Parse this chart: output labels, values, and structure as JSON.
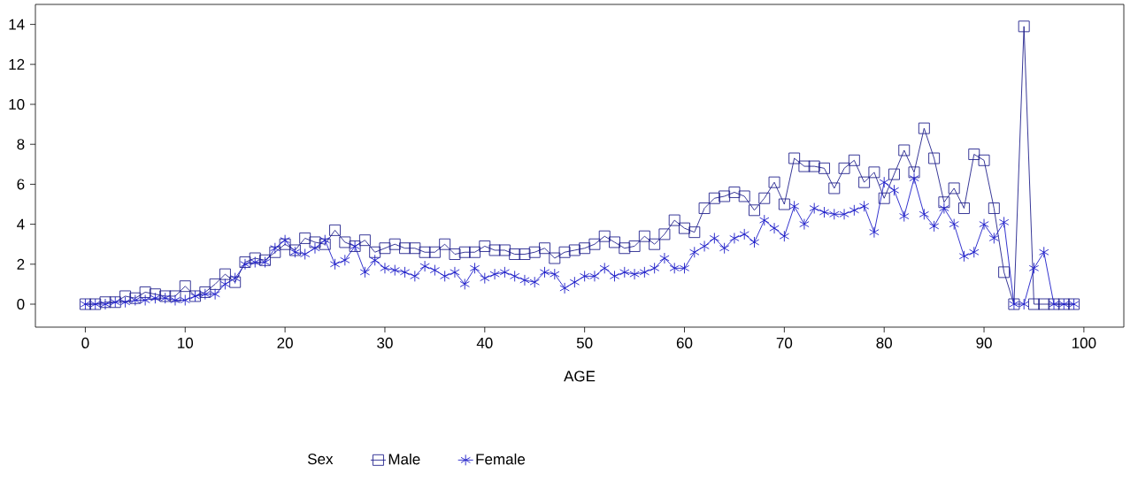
{
  "chart_data": {
    "type": "line",
    "xlabel": "AGE",
    "legend_title": "Sex",
    "legend": "bottom",
    "grid": false,
    "xlim": [
      -5,
      104
    ],
    "ylim": [
      -1.15,
      15
    ],
    "xticks": [
      0,
      10,
      20,
      30,
      40,
      50,
      60,
      70,
      80,
      90,
      100
    ],
    "yticks": [
      0,
      2,
      4,
      6,
      8,
      10,
      12,
      14
    ],
    "x": [
      0,
      1,
      2,
      3,
      4,
      5,
      6,
      7,
      8,
      9,
      10,
      11,
      12,
      13,
      14,
      15,
      16,
      17,
      18,
      19,
      20,
      21,
      22,
      23,
      24,
      25,
      26,
      27,
      28,
      29,
      30,
      31,
      32,
      33,
      34,
      35,
      36,
      37,
      38,
      39,
      40,
      41,
      42,
      43,
      44,
      45,
      46,
      47,
      48,
      49,
      50,
      51,
      52,
      53,
      54,
      55,
      56,
      57,
      58,
      59,
      60,
      61,
      62,
      63,
      64,
      65,
      66,
      67,
      68,
      69,
      70,
      71,
      72,
      73,
      74,
      75,
      76,
      77,
      78,
      79,
      80,
      81,
      82,
      83,
      84,
      85,
      86,
      87,
      88,
      89,
      90,
      91,
      92,
      93,
      94,
      95,
      96,
      97,
      98,
      99
    ],
    "series": [
      {
        "name": "Male",
        "color": "#22228c",
        "marker": "square",
        "values": [
          0,
          0,
          0.1,
          0.1,
          0.4,
          0.3,
          0.6,
          0.5,
          0.4,
          0.4,
          0.9,
          0.4,
          0.6,
          1.0,
          1.5,
          1.1,
          2.1,
          2.3,
          2.2,
          2.6,
          3.0,
          2.7,
          3.3,
          3.1,
          3.0,
          3.7,
          3.1,
          2.9,
          3.2,
          2.6,
          2.8,
          3.0,
          2.8,
          2.8,
          2.6,
          2.6,
          3.0,
          2.5,
          2.6,
          2.6,
          2.9,
          2.7,
          2.7,
          2.5,
          2.5,
          2.6,
          2.8,
          2.3,
          2.6,
          2.7,
          2.8,
          3.0,
          3.4,
          3.1,
          2.8,
          2.9,
          3.4,
          3.0,
          3.5,
          4.2,
          3.8,
          3.6,
          4.8,
          5.3,
          5.4,
          5.6,
          5.4,
          4.7,
          5.3,
          6.1,
          5.0,
          7.3,
          6.9,
          6.9,
          6.8,
          5.8,
          6.8,
          7.2,
          6.1,
          6.6,
          5.3,
          6.5,
          7.7,
          6.6,
          8.8,
          7.3,
          5.1,
          5.8,
          4.8,
          7.5,
          7.2,
          4.8,
          1.6,
          0,
          13.9,
          0,
          0,
          0,
          0,
          0
        ]
      },
      {
        "name": "Female",
        "color": "#1c1cc8",
        "marker": "cross",
        "values": [
          0,
          0,
          0,
          0.1,
          0.1,
          0.2,
          0.2,
          0.3,
          0.3,
          0.2,
          0.2,
          0.4,
          0.5,
          0.5,
          1.0,
          1.3,
          2.0,
          2.1,
          2.1,
          2.8,
          3.2,
          2.6,
          2.5,
          2.8,
          3.2,
          2.0,
          2.2,
          2.9,
          1.6,
          2.2,
          1.8,
          1.7,
          1.6,
          1.4,
          1.9,
          1.7,
          1.4,
          1.6,
          1.0,
          1.8,
          1.3,
          1.5,
          1.6,
          1.4,
          1.2,
          1.1,
          1.6,
          1.5,
          0.8,
          1.1,
          1.4,
          1.4,
          1.8,
          1.4,
          1.6,
          1.5,
          1.6,
          1.8,
          2.3,
          1.8,
          1.8,
          2.6,
          2.9,
          3.3,
          2.8,
          3.3,
          3.5,
          3.1,
          4.2,
          3.8,
          3.4,
          4.9,
          4.0,
          4.8,
          4.6,
          4.5,
          4.5,
          4.7,
          4.9,
          3.6,
          6.1,
          5.7,
          4.4,
          6.3,
          4.5,
          3.9,
          4.8,
          4.0,
          2.4,
          2.6,
          4.0,
          3.3,
          4.1,
          0,
          0,
          1.8,
          2.6,
          0,
          0,
          0
        ]
      }
    ]
  }
}
